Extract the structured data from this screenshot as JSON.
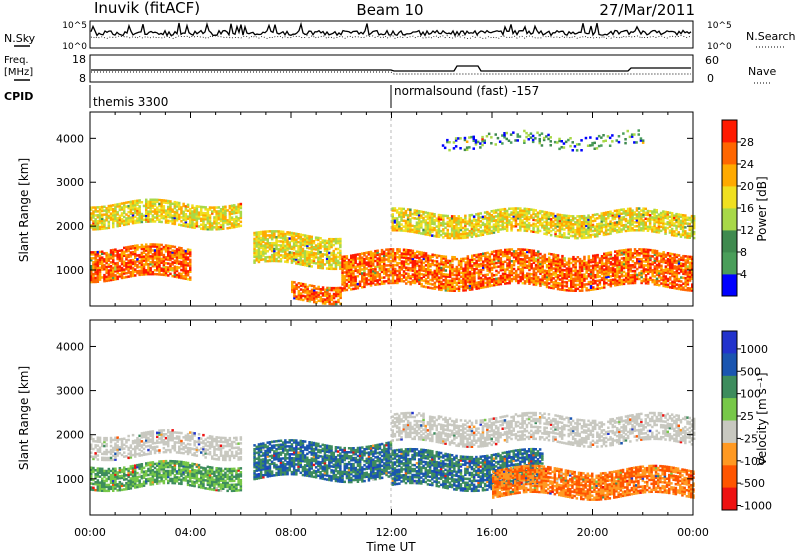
{
  "header": {
    "station": "Inuvik (fitACF)",
    "beam": "Beam 10",
    "date": "27/Mar/2011"
  },
  "noise_panel": {
    "left_label": "N.Sky",
    "right_label": "N.Search",
    "left_ticks": [
      "10^5",
      "10^0"
    ],
    "right_ticks": [
      "10^5",
      "10^0"
    ]
  },
  "freq_panel": {
    "left_label_line1": "Freq.",
    "left_label_line2": "[MHz]",
    "right_label": "Nave",
    "left_ticks": [
      "18",
      "8"
    ],
    "right_ticks": [
      "60",
      "0"
    ]
  },
  "cpid_panel": {
    "label": "CPID",
    "programs": [
      "themis 3300",
      "normalsound (fast) -157"
    ]
  },
  "x_axis": {
    "ticks": [
      "00:00",
      "04:00",
      "08:00",
      "12:00",
      "16:00",
      "20:00",
      "00:00"
    ],
    "label": "Time UT"
  },
  "colors": {
    "power": [
      "#0000ff",
      "#4a9e5a",
      "#3f8a4f",
      "#a8d848",
      "#f0e020",
      "#ffaa00",
      "#ff6600",
      "#ff1a00"
    ],
    "velocity": [
      "#ee1111",
      "#ff5500",
      "#ff9922",
      "#c8c8c0",
      "#77c848",
      "#3d8c5d",
      "#1a55b0",
      "#2233cc"
    ]
  },
  "chart_data": [
    {
      "type": "heatmap",
      "title": "",
      "xlabel": "",
      "ylabel": "Slant Range [km]",
      "xlim_hours": [
        0,
        24
      ],
      "ylim": [
        180,
        4600
      ],
      "yticks": [
        1000,
        2000,
        3000,
        4000
      ],
      "colorbar": {
        "label": "Power [dB]",
        "ticks": [
          "4",
          "8",
          "12",
          "16",
          "20",
          "24",
          "28"
        ],
        "range": [
          0,
          30
        ]
      },
      "dominant_echo_bands": [
        {
          "t_start_h": 0,
          "t_end_h": 4,
          "range_km": [
            800,
            1500
          ],
          "level": "high"
        },
        {
          "t_start_h": 0,
          "t_end_h": 6,
          "range_km": [
            2000,
            2500
          ],
          "level": "medium"
        },
        {
          "t_start_h": 6.5,
          "t_end_h": 10,
          "range_km": [
            1100,
            1800
          ],
          "level": "medium"
        },
        {
          "t_start_h": 8,
          "t_end_h": 10,
          "range_km": [
            300,
            700
          ],
          "level": "high"
        },
        {
          "t_start_h": 10,
          "t_end_h": 24,
          "range_km": [
            600,
            1400
          ],
          "level": "high"
        },
        {
          "t_start_h": 12,
          "t_end_h": 24,
          "range_km": [
            1800,
            2300
          ],
          "level": "medium"
        },
        {
          "t_start_h": 14,
          "t_end_h": 22,
          "range_km": [
            3800,
            4100
          ],
          "level": "sparse"
        }
      ]
    },
    {
      "type": "heatmap",
      "title": "",
      "xlabel": "Time UT",
      "ylabel": "Slant Range [km]",
      "xlim_hours": [
        0,
        24
      ],
      "ylim": [
        180,
        4600
      ],
      "yticks": [
        1000,
        2000,
        3000,
        4000
      ],
      "colorbar": {
        "label": "Velocity [m s⁻¹]",
        "ticks": [
          "1000",
          "500",
          "100",
          "25",
          "-25",
          "-100",
          "-500",
          "-1000"
        ],
        "range": [
          -1200,
          1200
        ]
      },
      "dominant_echo_bands": [
        {
          "t_start_h": 0,
          "t_end_h": 6,
          "range_km": [
            800,
            1300
          ],
          "level": "slow positive"
        },
        {
          "t_start_h": 0,
          "t_end_h": 6,
          "range_km": [
            1500,
            2000
          ],
          "level": "near zero"
        },
        {
          "t_start_h": 6.5,
          "t_end_h": 12,
          "range_km": [
            1000,
            1800
          ],
          "level": "moderate positive"
        },
        {
          "t_start_h": 12,
          "t_end_h": 18,
          "range_km": [
            800,
            1600
          ],
          "level": "moderate positive"
        },
        {
          "t_start_h": 16,
          "t_end_h": 24,
          "range_km": [
            600,
            1200
          ],
          "level": "moderate negative"
        },
        {
          "t_start_h": 12,
          "t_end_h": 24,
          "range_km": [
            1800,
            2400
          ],
          "level": "near zero"
        }
      ]
    }
  ]
}
